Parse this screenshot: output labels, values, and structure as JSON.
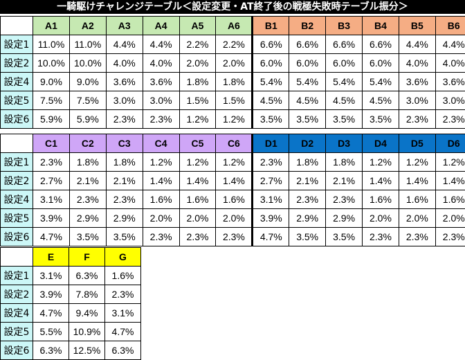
{
  "title": "一騎駆けチャレンジテーブル＜設定変更・AT終了後の戦極失敗時テーブル振分＞",
  "row_labels": [
    "設定1",
    "設定2",
    "設定4",
    "設定5",
    "設定6"
  ],
  "tables": [
    {
      "groups": [
        {
          "color": "#c6e9b2",
          "columns": [
            "A1",
            "A2",
            "A3",
            "A4",
            "A5",
            "A6"
          ],
          "rows": [
            [
              "11.0%",
              "11.0%",
              "4.4%",
              "4.4%",
              "2.2%",
              "2.2%"
            ],
            [
              "10.0%",
              "10.0%",
              "4.0%",
              "4.0%",
              "2.0%",
              "2.0%"
            ],
            [
              "9.0%",
              "9.0%",
              "3.6%",
              "3.6%",
              "1.8%",
              "1.8%"
            ],
            [
              "7.5%",
              "7.5%",
              "3.0%",
              "3.0%",
              "1.5%",
              "1.5%"
            ],
            [
              "5.9%",
              "5.9%",
              "2.3%",
              "2.3%",
              "1.2%",
              "1.2%"
            ]
          ]
        },
        {
          "color": "#f5ad84",
          "columns": [
            "B1",
            "B2",
            "B3",
            "B4",
            "B5",
            "B6"
          ],
          "rows": [
            [
              "6.6%",
              "6.6%",
              "6.6%",
              "6.6%",
              "4.4%",
              "4.4%"
            ],
            [
              "6.0%",
              "6.0%",
              "6.0%",
              "6.0%",
              "4.0%",
              "4.0%"
            ],
            [
              "5.4%",
              "5.4%",
              "5.4%",
              "5.4%",
              "3.6%",
              "3.6%"
            ],
            [
              "4.5%",
              "4.5%",
              "4.5%",
              "4.5%",
              "3.0%",
              "3.0%"
            ],
            [
              "3.5%",
              "3.5%",
              "3.5%",
              "3.5%",
              "2.3%",
              "2.3%"
            ]
          ]
        }
      ]
    },
    {
      "groups": [
        {
          "color": "#cfa6f7",
          "columns": [
            "C1",
            "C2",
            "C3",
            "C4",
            "C5",
            "C6"
          ],
          "rows": [
            [
              "2.3%",
              "1.8%",
              "1.8%",
              "1.2%",
              "1.2%",
              "1.2%"
            ],
            [
              "2.7%",
              "2.1%",
              "2.1%",
              "1.4%",
              "1.4%",
              "1.4%"
            ],
            [
              "3.1%",
              "2.3%",
              "2.3%",
              "1.6%",
              "1.6%",
              "1.6%"
            ],
            [
              "3.9%",
              "2.9%",
              "2.9%",
              "2.0%",
              "2.0%",
              "2.0%"
            ],
            [
              "4.7%",
              "3.5%",
              "3.5%",
              "2.3%",
              "2.3%",
              "2.3%"
            ]
          ]
        },
        {
          "color": "#0a74c8",
          "columns": [
            "D1",
            "D2",
            "D3",
            "D4",
            "D5",
            "D6"
          ],
          "rows": [
            [
              "2.3%",
              "1.8%",
              "1.8%",
              "1.2%",
              "1.2%",
              "1.2%"
            ],
            [
              "2.7%",
              "2.1%",
              "2.1%",
              "1.4%",
              "1.4%",
              "1.4%"
            ],
            [
              "3.1%",
              "2.3%",
              "2.3%",
              "1.6%",
              "1.6%",
              "1.6%"
            ],
            [
              "3.9%",
              "2.9%",
              "2.9%",
              "2.0%",
              "2.0%",
              "2.0%"
            ],
            [
              "4.7%",
              "3.5%",
              "3.5%",
              "2.3%",
              "2.3%",
              "2.3%"
            ]
          ]
        }
      ]
    },
    {
      "groups": [
        {
          "color": "#ffff00",
          "columns": [
            "E",
            "F",
            "G"
          ],
          "rows": [
            [
              "3.1%",
              "6.3%",
              "1.6%"
            ],
            [
              "3.9%",
              "7.8%",
              "2.3%"
            ],
            [
              "4.7%",
              "9.4%",
              "3.1%"
            ],
            [
              "5.5%",
              "10.9%",
              "4.7%"
            ],
            [
              "6.3%",
              "12.5%",
              "6.3%"
            ]
          ]
        }
      ]
    }
  ]
}
